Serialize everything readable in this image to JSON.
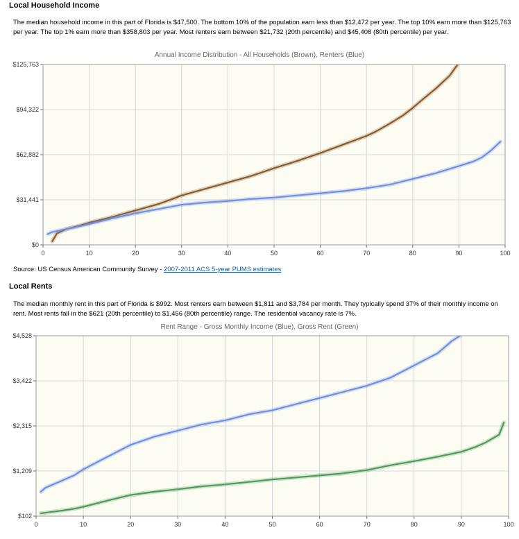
{
  "income": {
    "heading": "Local Household Income",
    "description": "The median household income in this part of Florida is $47,500. The bottom 10% of the population earn less than $12,472 per year. The top 10% earn more than $125,763 per year. The top 1% earn more than $358,803 per year. Most renters earn between $21,732 (20th percentile) and $45,408 (80th percentile) per year.",
    "source_prefix": "Source: US Census American Community Survey - ",
    "source_link": "2007-2011 ACS 5-year PUMS estimates"
  },
  "rents": {
    "heading": "Local Rents",
    "description": "The median monthly rent in this part of Florida is $992. Most renters earn between $1,811 and $3,784 per month. They typically spend 37% of their monthly income on rent. Most rents fall in the $621 (20th percentile) to $1,456 (80th percentile) range. The residential vacancy rate is 7%."
  },
  "chart_data": [
    {
      "type": "line",
      "title": "Annual Income Distribution - All Households (Brown), Renters (Blue)",
      "xlim": [
        0,
        100
      ],
      "ylim": [
        0,
        125763
      ],
      "x_ticks": [
        0,
        10,
        20,
        30,
        40,
        50,
        60,
        70,
        80,
        90,
        100
      ],
      "y_ticks": [
        0,
        31441,
        62882,
        94322,
        125763
      ],
      "y_tick_labels": [
        "$0",
        "$31,441",
        "$62,882",
        "$94,322",
        "$125,763"
      ],
      "grid": true,
      "series": [
        {
          "color": "#8b5a2b",
          "x": [
            2,
            3,
            5,
            8,
            10,
            15,
            20,
            25,
            28,
            30,
            35,
            40,
            45,
            50,
            55,
            60,
            65,
            70,
            72,
            75,
            78,
            80,
            82,
            85,
            88,
            90
          ],
          "y": [
            2500,
            8000,
            11000,
            13500,
            15500,
            19500,
            24000,
            28500,
            32000,
            34500,
            39000,
            43500,
            48000,
            53500,
            58500,
            64000,
            70000,
            76000,
            79000,
            84500,
            90500,
            95500,
            101000,
            109000,
            118000,
            127000
          ]
        },
        {
          "color": "#6f8fe6",
          "x": [
            1,
            2,
            5,
            10,
            15,
            20,
            25,
            30,
            35,
            40,
            45,
            50,
            55,
            60,
            65,
            70,
            75,
            80,
            85,
            88,
            90,
            93,
            95,
            97,
            99
          ],
          "y": [
            7500,
            9000,
            11000,
            14500,
            18500,
            22000,
            25000,
            28000,
            29500,
            30500,
            32000,
            33000,
            34500,
            36000,
            37500,
            39500,
            42000,
            46000,
            50000,
            53000,
            55000,
            58000,
            61000,
            66000,
            72000
          ]
        }
      ]
    },
    {
      "type": "line",
      "title": "Rent Range - Gross Monthly Income (Blue), Gross Rent (Green)",
      "xlim": [
        0,
        100
      ],
      "ylim": [
        102,
        4528
      ],
      "x_ticks": [
        0,
        10,
        20,
        30,
        40,
        50,
        60,
        70,
        80,
        90,
        100
      ],
      "y_ticks": [
        102,
        1209,
        2315,
        3422,
        4528
      ],
      "y_tick_labels": [
        "$102",
        "$1,209",
        "$2,315",
        "$3,422",
        "$4,528"
      ],
      "grid": true,
      "series": [
        {
          "color": "#6f8fe6",
          "x": [
            1,
            2,
            5,
            8,
            10,
            15,
            20,
            25,
            30,
            35,
            40,
            45,
            50,
            55,
            60,
            65,
            70,
            75,
            80,
            85,
            88,
            90
          ],
          "y": [
            700,
            800,
            950,
            1100,
            1250,
            1550,
            1850,
            2050,
            2200,
            2350,
            2450,
            2600,
            2700,
            2850,
            3000,
            3150,
            3300,
            3500,
            3800,
            4100,
            4400,
            4550
          ]
        },
        {
          "color": "#4f9a5b",
          "x": [
            1,
            3,
            5,
            8,
            10,
            15,
            20,
            25,
            30,
            35,
            40,
            45,
            50,
            55,
            60,
            65,
            70,
            75,
            80,
            85,
            90,
            93,
            95,
            98,
            99
          ],
          "y": [
            170,
            200,
            230,
            280,
            330,
            480,
            620,
            700,
            760,
            830,
            880,
            940,
            1000,
            1050,
            1100,
            1150,
            1230,
            1350,
            1450,
            1560,
            1680,
            1800,
            1900,
            2100,
            2400
          ]
        }
      ]
    }
  ]
}
